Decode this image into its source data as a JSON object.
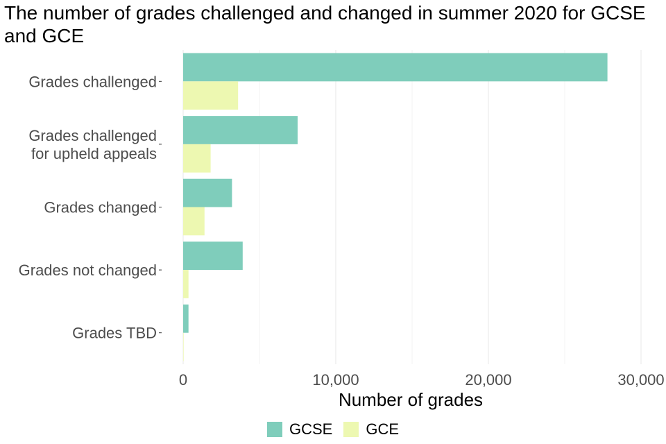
{
  "title": "The number of grades challenged and changed in summer 2020 for GCSE and GCE",
  "chart_data": {
    "type": "bar",
    "orientation": "horizontal",
    "categories": [
      [
        "Grades challenged"
      ],
      [
        "Grades challenged",
        "for upheld appeals"
      ],
      [
        "Grades changed"
      ],
      [
        "Grades not changed"
      ],
      [
        "Grades TBD"
      ]
    ],
    "series": [
      {
        "name": "GCSE",
        "color": "#7fcdbb",
        "values": [
          27800,
          7500,
          3200,
          3900,
          350
        ]
      },
      {
        "name": "GCE",
        "color": "#edf8b1",
        "values": [
          3600,
          1800,
          1400,
          350,
          30
        ]
      }
    ],
    "xlabel": "Number of grades",
    "ylabel": "",
    "xlim": [
      0,
      31000
    ],
    "xticks": [
      0,
      10000,
      20000,
      30000
    ],
    "xtick_labels": [
      "0",
      "10,000",
      "20,000",
      "30,000"
    ],
    "grid": true,
    "legend": "bottom"
  }
}
